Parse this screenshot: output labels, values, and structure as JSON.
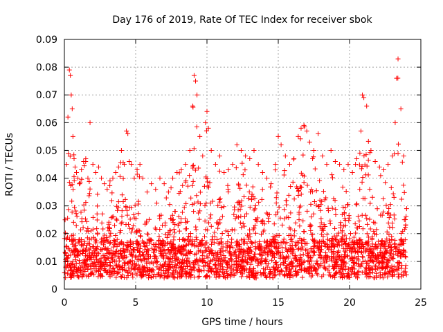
{
  "chart_data": {
    "type": "scatter",
    "title": "Day 176 of 2019, Rate Of TEC Index for receiver sbok",
    "xlabel": "GPS time / hours",
    "ylabel": "ROTI / TECUs",
    "xlim": [
      0,
      25
    ],
    "ylim": [
      0,
      0.09
    ],
    "xticks": [
      0,
      5,
      10,
      15,
      20,
      25
    ],
    "xtick_labels": [
      "0",
      "5",
      "10",
      "15",
      "20",
      "25"
    ],
    "yticks": [
      0,
      0.01,
      0.02,
      0.03,
      0.04,
      0.05,
      0.06,
      0.07,
      0.08,
      0.09
    ],
    "ytick_labels": [
      "0",
      "0.01",
      "0.02",
      "0.03",
      "0.04",
      "0.05",
      "0.06",
      "0.07",
      "0.08",
      "0.09"
    ],
    "grid": true,
    "marker": "+",
    "series": [
      {
        "name": "ROTI",
        "color": "#ff0000",
        "description": "dense scatter of ROTI values from 0 to 24 h, mostly 0.003-0.045 TECU/min",
        "x": [
          0.05,
          0.15,
          0.25,
          0.35,
          0.42,
          0.48,
          0.55,
          0.6,
          0.68,
          0.75,
          0.85,
          0.95,
          1.05,
          1.2,
          1.35,
          1.5,
          1.65,
          1.8,
          2.0,
          2.2,
          2.4,
          2.6,
          2.8,
          3.0,
          3.2,
          3.4,
          3.6,
          3.8,
          4.0,
          4.2,
          4.35,
          4.45,
          4.55,
          4.7,
          4.9,
          5.1,
          5.3,
          5.5,
          5.8,
          6.1,
          6.4,
          6.7,
          7.0,
          7.3,
          7.6,
          7.9,
          8.2,
          8.5,
          8.8,
          9.0,
          9.1,
          9.2,
          9.3,
          9.5,
          9.7,
          9.9,
          10.0,
          10.1,
          10.3,
          10.6,
          10.9,
          11.2,
          11.5,
          11.8,
          12.1,
          12.4,
          12.7,
          13.0,
          13.3,
          13.6,
          13.9,
          14.2,
          14.5,
          14.8,
          15.0,
          15.2,
          15.5,
          15.8,
          16.1,
          16.4,
          16.6,
          16.8,
          17.0,
          17.2,
          17.5,
          17.8,
          18.1,
          18.4,
          18.7,
          19.0,
          19.3,
          19.6,
          19.9,
          20.2,
          20.5,
          20.8,
          20.9,
          21.0,
          21.2,
          21.5,
          21.8,
          22.1,
          22.4,
          22.7,
          23.0,
          23.2,
          23.3,
          23.4,
          23.6,
          23.8,
          24.0
        ],
        "y": [
          0.025,
          0.045,
          0.062,
          0.079,
          0.077,
          0.07,
          0.065,
          0.055,
          0.047,
          0.044,
          0.042,
          0.04,
          0.038,
          0.043,
          0.046,
          0.047,
          0.04,
          0.06,
          0.045,
          0.042,
          0.044,
          0.04,
          0.038,
          0.036,
          0.039,
          0.04,
          0.042,
          0.044,
          0.05,
          0.045,
          0.057,
          0.056,
          0.046,
          0.045,
          0.04,
          0.043,
          0.045,
          0.04,
          0.035,
          0.038,
          0.036,
          0.04,
          0.038,
          0.035,
          0.04,
          0.042,
          0.043,
          0.045,
          0.05,
          0.066,
          0.077,
          0.075,
          0.07,
          0.055,
          0.048,
          0.06,
          0.064,
          0.058,
          0.05,
          0.045,
          0.048,
          0.042,
          0.043,
          0.045,
          0.052,
          0.05,
          0.048,
          0.047,
          0.05,
          0.045,
          0.042,
          0.04,
          0.038,
          0.045,
          0.055,
          0.052,
          0.048,
          0.045,
          0.047,
          0.055,
          0.058,
          0.059,
          0.057,
          0.053,
          0.05,
          0.056,
          0.048,
          0.045,
          0.05,
          0.046,
          0.045,
          0.043,
          0.045,
          0.042,
          0.047,
          0.057,
          0.07,
          0.069,
          0.066,
          0.05,
          0.046,
          0.044,
          0.043,
          0.045,
          0.048,
          0.06,
          0.076,
          0.083,
          0.065,
          0.048,
          0.029
        ]
      }
    ]
  }
}
